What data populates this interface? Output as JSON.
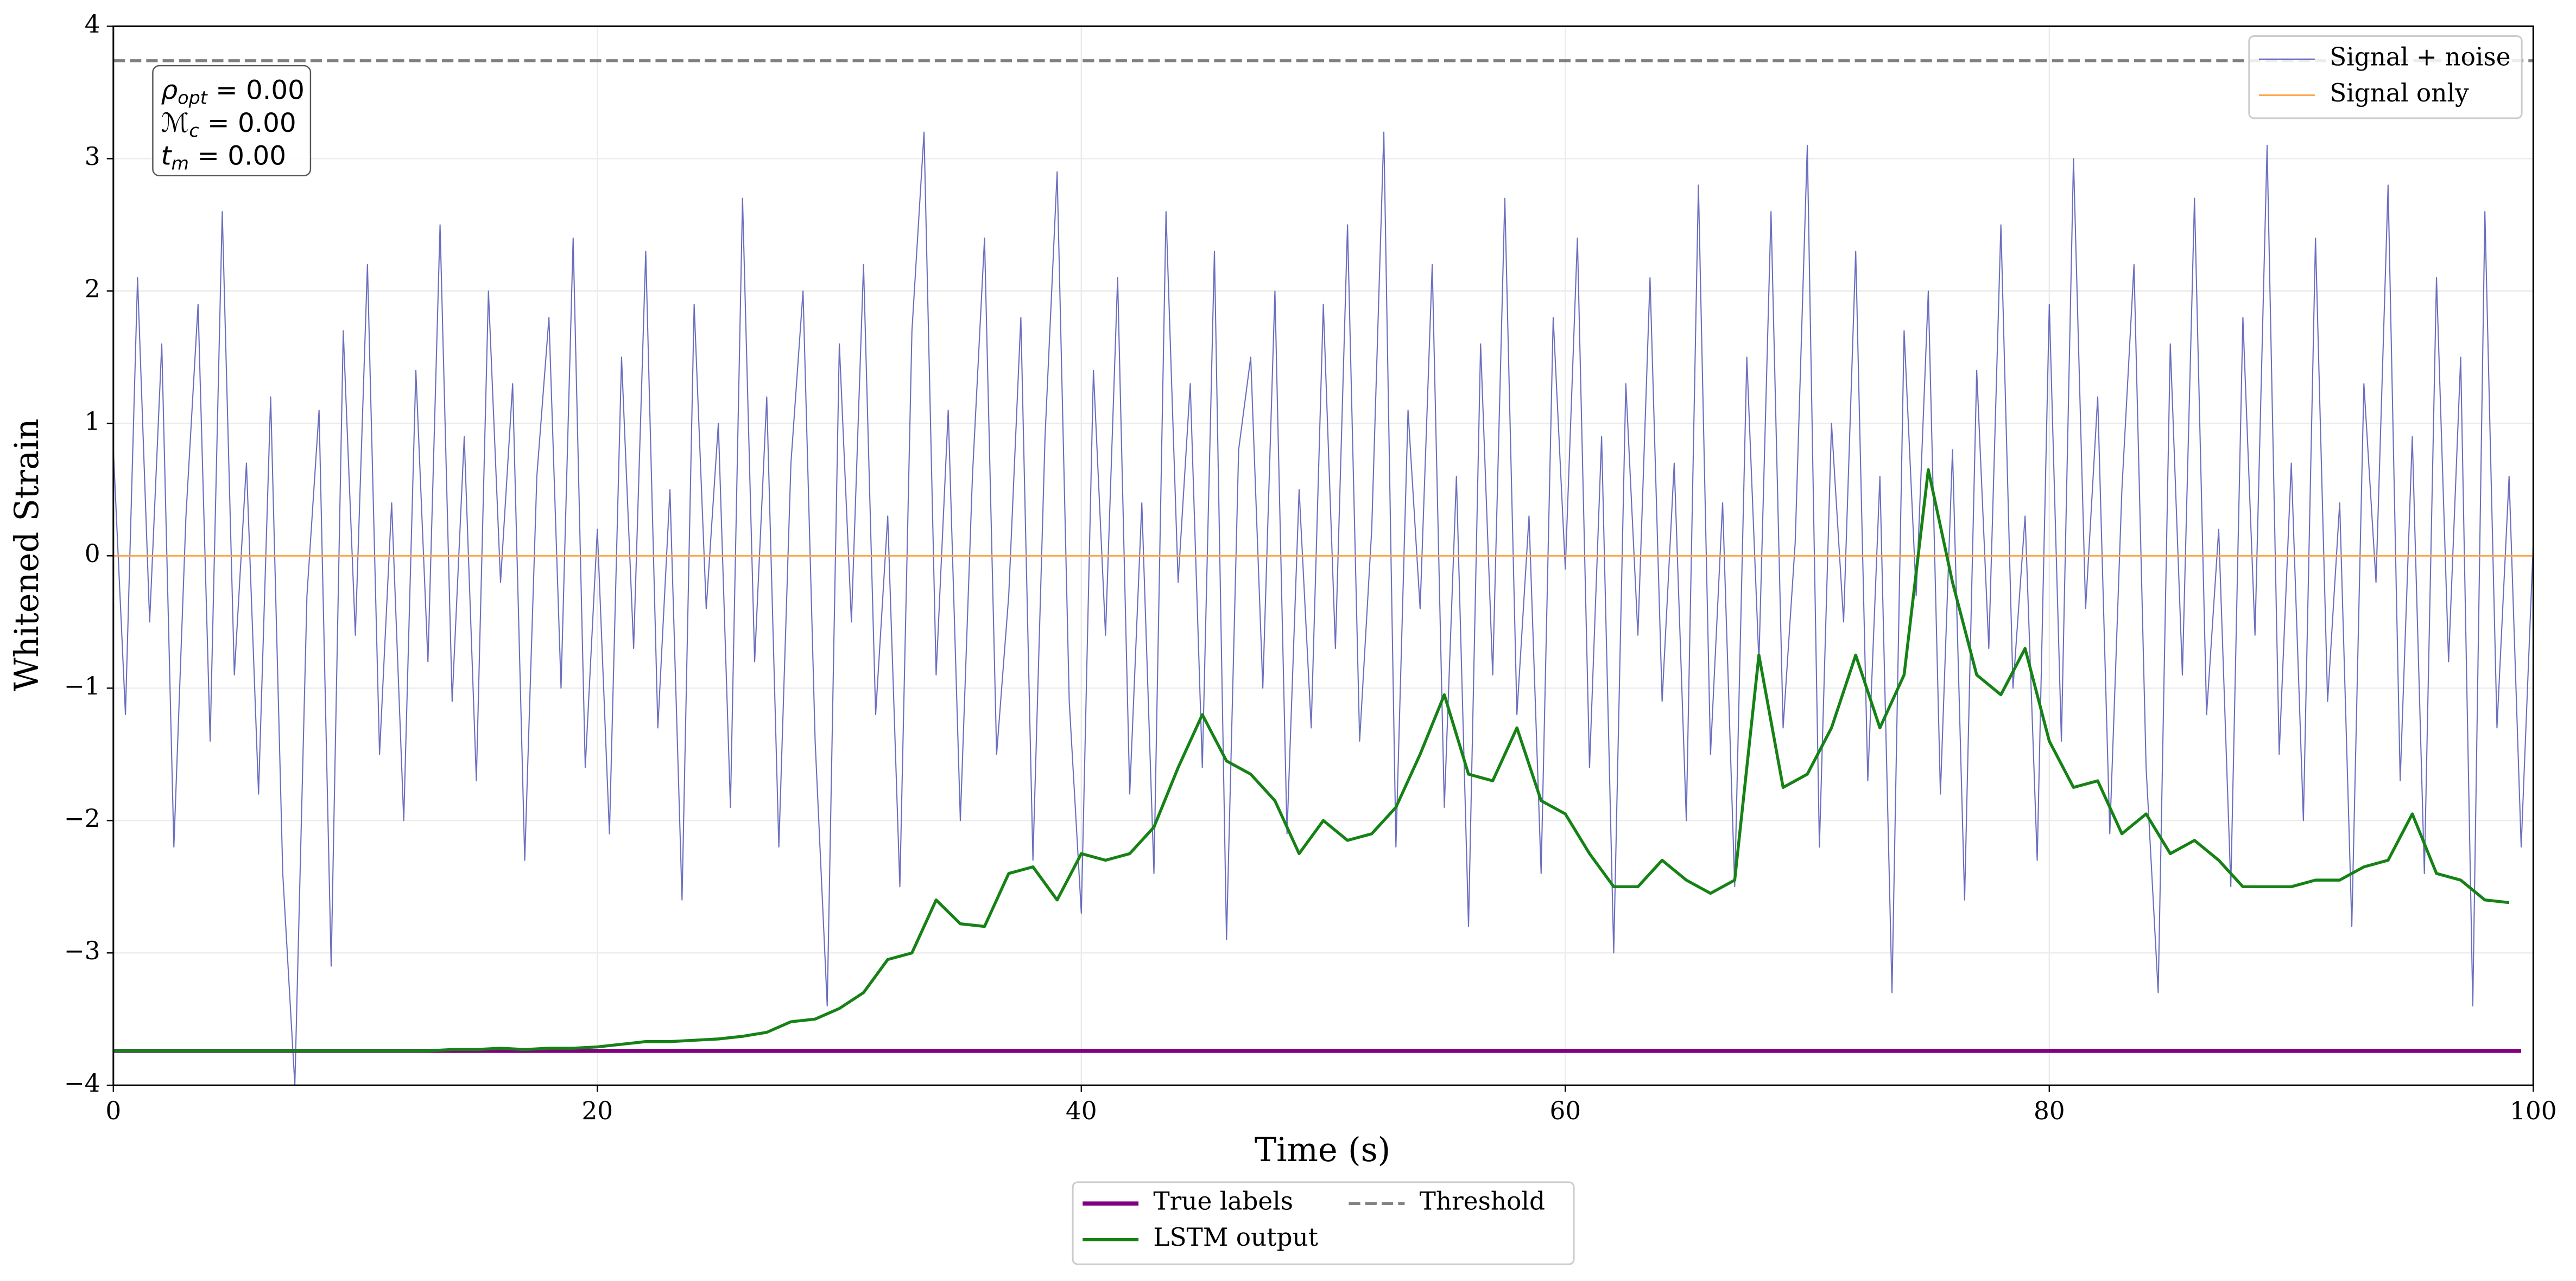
{
  "chart_data": {
    "type": "line",
    "xlabel": "Time (s)",
    "ylabel": "Whitened Strain",
    "xlim": [
      0,
      100
    ],
    "ylim": [
      -4,
      4
    ],
    "xticks": [
      0,
      20,
      40,
      60,
      80,
      100
    ],
    "yticks": [
      {
        "value": -4,
        "label": "−4"
      },
      {
        "value": -3,
        "label": "−3"
      },
      {
        "value": -2,
        "label": "−2"
      },
      {
        "value": -1,
        "label": "−1"
      },
      0,
      1,
      2,
      3,
      4
    ],
    "grid": true,
    "annotations": [
      {
        "symbol": "ρ",
        "sub": "opt",
        "text": " = 0.00"
      },
      {
        "symbol": "ℳ",
        "sub": "c",
        "text": " = 0.00"
      },
      {
        "symbol": "t",
        "sub": "m",
        "text": " = 0.00"
      }
    ],
    "series": [
      {
        "name": "Signal + noise",
        "color": "#5b5fb8",
        "legend": "upper right",
        "x": [
          0,
          0.5,
          1,
          1.5,
          2,
          2.5,
          3,
          3.5,
          4,
          4.5,
          5,
          5.5,
          6,
          6.5,
          7,
          7.5,
          8,
          8.5,
          9,
          9.5,
          10,
          10.5,
          11,
          11.5,
          12,
          12.5,
          13,
          13.5,
          14,
          14.5,
          15,
          15.5,
          16,
          16.5,
          17,
          17.5,
          18,
          18.5,
          19,
          19.5,
          20,
          20.5,
          21,
          21.5,
          22,
          22.5,
          23,
          23.5,
          24,
          24.5,
          25,
          25.5,
          26,
          26.5,
          27,
          27.5,
          28,
          28.5,
          29,
          29.5,
          30,
          30.5,
          31,
          31.5,
          32,
          32.5,
          33,
          33.5,
          34,
          34.5,
          35,
          35.5,
          36,
          36.5,
          37,
          37.5,
          38,
          38.5,
          39,
          39.5,
          40,
          40.5,
          41,
          41.5,
          42,
          42.5,
          43,
          43.5,
          44,
          44.5,
          45,
          45.5,
          46,
          46.5,
          47,
          47.5,
          48,
          48.5,
          49,
          49.5,
          50,
          50.5,
          51,
          51.5,
          52,
          52.5,
          53,
          53.5,
          54,
          54.5,
          55,
          55.5,
          56,
          56.5,
          57,
          57.5,
          58,
          58.5,
          59,
          59.5,
          60,
          60.5,
          61,
          61.5,
          62,
          62.5,
          63,
          63.5,
          64,
          64.5,
          65,
          65.5,
          66,
          66.5,
          67,
          67.5,
          68,
          68.5,
          69,
          69.5,
          70,
          70.5,
          71,
          71.5,
          72,
          72.5,
          73,
          73.5,
          74,
          74.5,
          75,
          75.5,
          76,
          76.5,
          77,
          77.5,
          78,
          78.5,
          79,
          79.5,
          80,
          80.5,
          81,
          81.5,
          82,
          82.5,
          83,
          83.5,
          84,
          84.5,
          85,
          85.5,
          86,
          86.5,
          87,
          87.5,
          88,
          88.5,
          89,
          89.5,
          90,
          90.5,
          91,
          91.5,
          92,
          92.5,
          93,
          93.5,
          94,
          94.5,
          95,
          95.5,
          96,
          96.5,
          97,
          97.5,
          98,
          98.5,
          99,
          99.5,
          100
        ],
        "values": [
          0.8,
          -1.2,
          2.1,
          -0.5,
          1.6,
          -2.2,
          0.3,
          1.9,
          -1.4,
          2.6,
          -0.9,
          0.7,
          -1.8,
          1.2,
          -2.4,
          -4.0,
          -0.3,
          1.1,
          -3.1,
          1.7,
          -0.6,
          2.2,
          -1.5,
          0.4,
          -2.0,
          1.4,
          -0.8,
          2.5,
          -1.1,
          0.9,
          -1.7,
          2.0,
          -0.2,
          1.3,
          -2.3,
          0.6,
          1.8,
          -1.0,
          2.4,
          -1.6,
          0.2,
          -2.1,
          1.5,
          -0.7,
          2.3,
          -1.3,
          0.5,
          -2.6,
          1.9,
          -0.4,
          1.0,
          -1.9,
          2.7,
          -0.8,
          1.2,
          -2.2,
          0.7,
          2.0,
          -1.4,
          -3.4,
          1.6,
          -0.5,
          2.2,
          -1.2,
          0.3,
          -2.5,
          1.7,
          3.2,
          -0.9,
          1.1,
          -2.0,
          0.6,
          2.4,
          -1.5,
          -0.3,
          1.8,
          -2.3,
          0.9,
          2.9,
          -1.1,
          -2.7,
          1.4,
          -0.6,
          2.1,
          -1.8,
          0.4,
          -2.4,
          2.6,
          -0.2,
          1.3,
          -1.6,
          2.3,
          -2.9,
          0.8,
          1.5,
          -1.0,
          2.0,
          -2.1,
          0.5,
          -1.3,
          1.9,
          -0.7,
          2.5,
          -1.4,
          0.2,
          3.2,
          -2.2,
          1.1,
          -0.4,
          2.2,
          -1.9,
          0.6,
          -2.8,
          1.6,
          -0.9,
          2.7,
          -1.2,
          0.3,
          -2.4,
          1.8,
          -0.1,
          2.4,
          -1.6,
          0.9,
          -3.0,
          1.3,
          -0.6,
          2.1,
          -1.1,
          0.7,
          -2.0,
          2.8,
          -1.5,
          0.4,
          -2.5,
          1.5,
          -0.8,
          2.6,
          -1.3,
          0.1,
          3.1,
          -2.2,
          1.0,
          -0.5,
          2.3,
          -1.7,
          0.6,
          -3.3,
          1.7,
          -0.3,
          2.0,
          -1.8,
          0.8,
          -2.6,
          1.4,
          -0.7,
          2.5,
          -1.0,
          0.3,
          -2.3,
          1.9,
          -1.4,
          3.0,
          -0.4,
          1.2,
          -2.1,
          0.5,
          2.2,
          -1.6,
          -3.3,
          1.6,
          -0.9,
          2.7,
          -1.2,
          0.2,
          -2.5,
          1.8,
          -0.6,
          3.1,
          -1.5,
          0.7,
          -2.0,
          2.4,
          -1.1,
          0.4,
          -2.8,
          1.3,
          -0.2,
          2.8,
          -1.7,
          0.9,
          -2.4,
          2.1,
          -0.8,
          1.5,
          -3.4,
          2.6,
          -1.3,
          0.6,
          -2.2,
          0.1
        ]
      },
      {
        "name": "Signal only",
        "color": "#ffa64d",
        "legend": "upper right",
        "x": [
          0,
          100
        ],
        "values": [
          0,
          0
        ]
      },
      {
        "name": "True labels",
        "color": "#800080",
        "legend": "lower center",
        "x": [
          0,
          99.5
        ],
        "values": [
          -3.74,
          -3.74
        ]
      },
      {
        "name": "LSTM output",
        "color": "#168216",
        "legend": "lower center",
        "x": [
          0,
          1,
          2,
          3,
          4,
          5,
          6,
          7,
          8,
          9,
          10,
          11,
          12,
          13,
          14,
          15,
          16,
          17,
          18,
          19,
          20,
          21,
          22,
          23,
          24,
          25,
          26,
          27,
          28,
          29,
          30,
          31,
          32,
          33,
          34,
          35,
          36,
          37,
          38,
          39,
          40,
          41,
          42,
          43,
          44,
          45,
          46,
          47,
          48,
          49,
          50,
          51,
          52,
          53,
          54,
          55,
          56,
          57,
          58,
          59,
          60,
          61,
          62,
          63,
          64,
          65,
          66,
          67,
          68,
          69,
          70,
          71,
          72,
          73,
          74,
          75,
          76,
          77,
          78,
          79,
          80,
          81,
          82,
          83,
          84,
          85,
          86,
          87,
          88,
          89,
          90,
          91,
          92,
          93,
          94,
          95,
          96,
          97,
          98,
          99
        ],
        "values": [
          -3.74,
          -3.74,
          -3.74,
          -3.74,
          -3.74,
          -3.74,
          -3.74,
          -3.74,
          -3.74,
          -3.74,
          -3.74,
          -3.74,
          -3.74,
          -3.74,
          -3.73,
          -3.73,
          -3.72,
          -3.73,
          -3.72,
          -3.72,
          -3.71,
          -3.69,
          -3.67,
          -3.67,
          -3.66,
          -3.65,
          -3.63,
          -3.6,
          -3.52,
          -3.5,
          -3.42,
          -3.3,
          -3.05,
          -3.0,
          -2.6,
          -2.78,
          -2.8,
          -2.4,
          -2.35,
          -2.6,
          -2.25,
          -2.3,
          -2.25,
          -2.05,
          -1.6,
          -1.2,
          -1.55,
          -1.65,
          -1.85,
          -2.25,
          -2.0,
          -2.15,
          -2.1,
          -1.9,
          -1.5,
          -1.05,
          -1.65,
          -1.7,
          -1.3,
          -1.85,
          -1.95,
          -2.25,
          -2.5,
          -2.5,
          -2.3,
          -2.45,
          -2.55,
          -2.45,
          -0.75,
          -1.75,
          -1.65,
          -1.3,
          -0.75,
          -1.3,
          -0.9,
          0.65,
          -0.2,
          -0.9,
          -1.05,
          -0.7,
          -1.4,
          -1.75,
          -1.7,
          -2.1,
          -1.95,
          -2.25,
          -2.15,
          -2.3,
          -2.5,
          -2.5,
          -2.5,
          -2.45,
          -2.45,
          -2.35,
          -2.3,
          -1.95,
          -2.4,
          -2.45,
          -2.6,
          -2.62
        ]
      },
      {
        "name": "Threshold",
        "color": "#808080",
        "legend": "lower center",
        "linestyle": "dashed",
        "x": [
          0,
          100
        ],
        "values": [
          3.74,
          3.74
        ]
      }
    ]
  }
}
